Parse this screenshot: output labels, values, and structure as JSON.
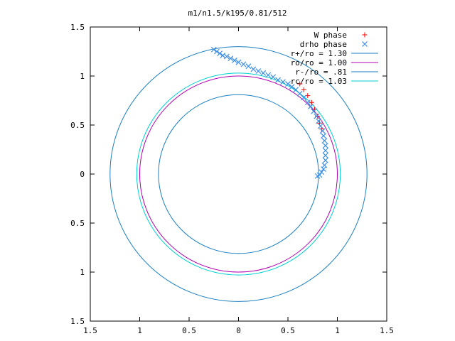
{
  "chart_data": {
    "type": "scatter",
    "title": "m1/n1.5/k195/0.81/512",
    "xlabel": "",
    "ylabel": "",
    "xlim": [
      -1.5,
      1.5
    ],
    "ylim": [
      -1.5,
      1.5
    ],
    "x_ticks": [
      -1.5,
      -1,
      -0.5,
      0,
      0.5,
      1,
      1.5
    ],
    "y_ticks": [
      -1.5,
      -1,
      -0.5,
      0,
      0.5,
      1,
      1.5
    ],
    "x_tick_labels": [
      "1.5",
      "1",
      "0.5",
      "0",
      "0.5",
      "1",
      "1.5"
    ],
    "y_tick_labels": [
      "1.5",
      "1",
      "0.5",
      "0",
      "0.5",
      "1",
      "1.5"
    ],
    "grid": false,
    "legend_position": "top-right",
    "series": [
      {
        "name": "W phase",
        "kind": "points",
        "marker": "plus",
        "color": "#ff0000",
        "points": [
          [
            0.62,
            0.92
          ],
          [
            0.66,
            0.86
          ],
          [
            0.7,
            0.8
          ],
          [
            0.74,
            0.73
          ],
          [
            0.77,
            0.66
          ],
          [
            0.8,
            0.59
          ],
          [
            0.82,
            0.52
          ],
          [
            0.84,
            0.46
          ]
        ]
      },
      {
        "name": "drho phase",
        "kind": "points",
        "marker": "cross",
        "color": "#3a8ee6",
        "points": [
          [
            -0.25,
            1.27
          ],
          [
            -0.22,
            1.25
          ],
          [
            -0.19,
            1.23
          ],
          [
            -0.16,
            1.21
          ],
          [
            -0.12,
            1.2
          ],
          [
            -0.08,
            1.18
          ],
          [
            -0.04,
            1.16
          ],
          [
            0.0,
            1.14
          ],
          [
            0.05,
            1.12
          ],
          [
            0.1,
            1.1
          ],
          [
            0.15,
            1.07
          ],
          [
            0.2,
            1.05
          ],
          [
            0.25,
            1.03
          ],
          [
            0.3,
            1.01
          ],
          [
            0.35,
            0.99
          ],
          [
            0.4,
            0.96
          ],
          [
            0.45,
            0.94
          ],
          [
            0.5,
            0.92
          ],
          [
            0.54,
            0.89
          ],
          [
            0.58,
            0.86
          ],
          [
            0.62,
            0.82
          ],
          [
            0.66,
            0.78
          ],
          [
            0.7,
            0.73
          ],
          [
            0.73,
            0.69
          ],
          [
            0.76,
            0.64
          ],
          [
            0.79,
            0.59
          ],
          [
            0.81,
            0.54
          ],
          [
            0.83,
            0.49
          ],
          [
            0.85,
            0.44
          ],
          [
            0.86,
            0.39
          ],
          [
            0.87,
            0.34
          ],
          [
            0.88,
            0.29
          ],
          [
            0.88,
            0.24
          ],
          [
            0.88,
            0.19
          ],
          [
            0.88,
            0.14
          ],
          [
            0.87,
            0.09
          ],
          [
            0.86,
            0.05
          ],
          [
            0.84,
            0.02
          ],
          [
            0.82,
            -0.01
          ],
          [
            0.8,
            -0.02
          ]
        ]
      },
      {
        "name": "r+/ro = 1.30",
        "kind": "circle",
        "radius": 1.3,
        "color": "#1a7fc0"
      },
      {
        "name": "ro/ro = 1.00",
        "kind": "circle",
        "radius": 1.0,
        "color": "#b000b0"
      },
      {
        "name": "r-/ro = .81",
        "kind": "circle",
        "radius": 0.81,
        "color": "#1a7fc0"
      },
      {
        "name": "rc/ro = 1.03",
        "kind": "circle",
        "radius": 1.03,
        "color": "#00d0d0"
      }
    ]
  }
}
